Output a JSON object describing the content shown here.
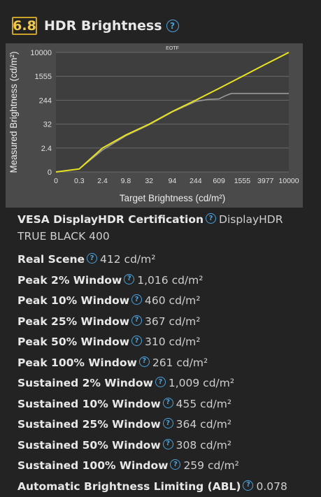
{
  "header": {
    "score": "6.8",
    "title": "HDR Brightness",
    "help_icon": "question-circle-icon"
  },
  "chart_data": {
    "type": "line",
    "title": "EOTF",
    "xlabel": "Target Brightness (cd/m²)",
    "ylabel": "Measured Brightness (cd/m²)",
    "x_ticks": [
      "0",
      "0.3",
      "2.4",
      "9.8",
      "32",
      "94",
      "244",
      "609",
      "1555",
      "3977",
      "10000"
    ],
    "y_ticks": [
      "0",
      "2.4",
      "32",
      "244",
      "1555",
      "10000"
    ],
    "grid": true,
    "series": [
      {
        "name": "",
        "color": "#e8e21f",
        "x": [
          0,
          0.3,
          2.4,
          9.8,
          32,
          94,
          244,
          609,
          1555,
          3977,
          10000
        ],
        "y": [
          0,
          0.3,
          2.4,
          9.8,
          32,
          94,
          244,
          609,
          1555,
          3977,
          10000
        ]
      },
      {
        "name": "",
        "color": "#9a9a9a",
        "x": [
          0,
          0.3,
          2.4,
          9.8,
          32,
          94,
          244,
          400,
          609,
          800,
          1000,
          1555,
          3977,
          10000
        ],
        "y": [
          0,
          0.3,
          2.2,
          9.0,
          30,
          90,
          220,
          260,
          270,
          350,
          412,
          412,
          412,
          412
        ]
      }
    ]
  },
  "specs": [
    {
      "label": "VESA DisplayHDR Certification",
      "value": "DisplayHDR TRUE BLACK 400"
    },
    {
      "label": "Real Scene",
      "value": "412 cd/m²"
    },
    {
      "label": "Peak 2% Window",
      "value": "1,016 cd/m²"
    },
    {
      "label": "Peak 10% Window",
      "value": "460 cd/m²"
    },
    {
      "label": "Peak 25% Window",
      "value": "367 cd/m²"
    },
    {
      "label": "Peak 50% Window",
      "value": "310 cd/m²"
    },
    {
      "label": "Peak 100% Window",
      "value": "261 cd/m²"
    },
    {
      "label": "Sustained 2% Window",
      "value": "1,009 cd/m²"
    },
    {
      "label": "Sustained 10% Window",
      "value": "455 cd/m²"
    },
    {
      "label": "Sustained 25% Window",
      "value": "364 cd/m²"
    },
    {
      "label": "Sustained 50% Window",
      "value": "308 cd/m²"
    },
    {
      "label": "Sustained 100% Window",
      "value": "259 cd/m²"
    },
    {
      "label": "Automatic Brightness Limiting (ABL)",
      "value": "0.078"
    }
  ]
}
